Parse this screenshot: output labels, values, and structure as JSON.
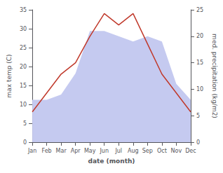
{
  "chart_data": {
    "type": "line",
    "xlabel": "date (month)",
    "ylabel": "max temp (C)",
    "y2label": "med. precipitation (kg/m2)",
    "categories": [
      "Jan",
      "Feb",
      "Mar",
      "Apr",
      "May",
      "Jun",
      "Jul",
      "Aug",
      "Sep",
      "Oct",
      "Nov",
      "Dec"
    ],
    "series": [
      {
        "type": "area",
        "color": "#c5caf0",
        "axis": "y2",
        "values": [
          8,
          8,
          9,
          13,
          21,
          21,
          20,
          19,
          20,
          19,
          11,
          8
        ]
      },
      {
        "type": "line",
        "color": "#c0392b",
        "values": [
          8,
          13,
          18,
          21,
          28,
          34,
          31,
          34,
          26,
          18,
          13,
          8
        ]
      }
    ],
    "ylim": [
      0,
      35
    ],
    "yticks": [
      0,
      5,
      10,
      15,
      20,
      25,
      30,
      35
    ],
    "y2lim": [
      0,
      25
    ],
    "y2ticks": [
      0,
      5,
      10,
      15,
      20,
      25
    ],
    "grid": false
  }
}
